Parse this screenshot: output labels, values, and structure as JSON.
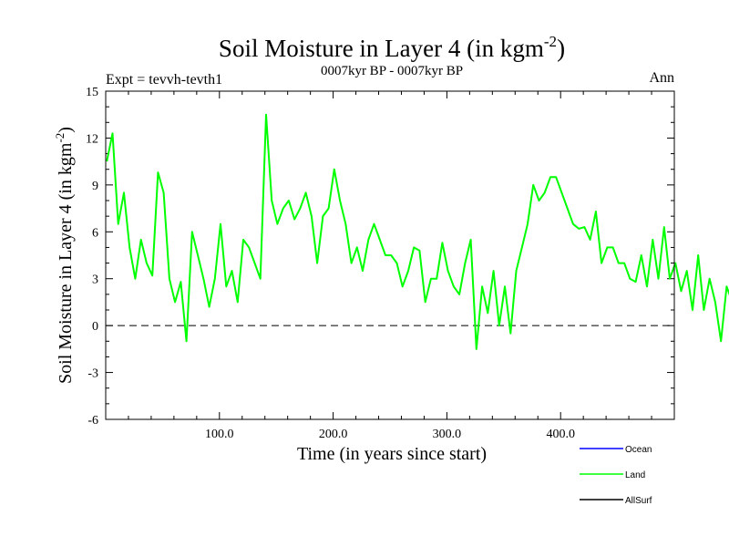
{
  "chart_data": {
    "type": "line",
    "title": "Soil Moisture in Layer 4 (in kgm",
    "title_superscript": "-2",
    "title_suffix": ")",
    "subtitle_left": "Expt = tevvh-tevth1",
    "subtitle_center": "0007kyr BP - 0007kyr BP",
    "subtitle_right": "Ann",
    "xlabel": "Time (in years since start)",
    "ylabel": "Soil Moisture in Layer 4 (in kgm",
    "ylabel_superscript": "-2",
    "ylabel_suffix": ")",
    "xlim": [
      0,
      500
    ],
    "ylim": [
      -6,
      15
    ],
    "x_ticks": [
      100,
      200,
      300,
      400
    ],
    "x_tick_labels": [
      "100.0",
      "200.0",
      "300.0",
      "400.0"
    ],
    "y_ticks": [
      -6,
      -3,
      0,
      3,
      6,
      9,
      12,
      15
    ],
    "y_tick_labels": [
      "-6",
      "-3",
      "0",
      "3",
      "6",
      "9",
      "12",
      "15"
    ],
    "zero_line": 0,
    "legend": [
      {
        "name": "Ocean",
        "color": "#0000ff"
      },
      {
        "name": "Land",
        "color": "#00ff00"
      },
      {
        "name": "AllSurf",
        "color": "#000000"
      }
    ],
    "series": [
      {
        "name": "Land",
        "color": "#00ff00",
        "x_start": 1,
        "x_step": 5,
        "values": [
          10.5,
          12.3,
          6.5,
          8.5,
          5,
          3,
          5.5,
          4,
          3.2,
          9.8,
          8.5,
          3,
          1.5,
          2.8,
          -1,
          6,
          4.5,
          3,
          1.2,
          3,
          6.5,
          2.5,
          3.5,
          1.5,
          5.5,
          5,
          4,
          3,
          13.5,
          8,
          6.5,
          7.5,
          8,
          6.8,
          7.5,
          8.5,
          7,
          4,
          7,
          7.5,
          10,
          8,
          6.5,
          4,
          5,
          3.5,
          5.5,
          6.5,
          5.5,
          4.5,
          4.5,
          4,
          2.5,
          3.5,
          5,
          4.8,
          1.5,
          3,
          3,
          5.3,
          3.5,
          2.5,
          2,
          4,
          5.5,
          -1.5,
          2.5,
          0.8,
          3.5,
          0,
          2.5,
          -0.5,
          3.5,
          5,
          6.5,
          9,
          8,
          8.5,
          9.5,
          9.5,
          8.5,
          7.5,
          6.5,
          6.2,
          6.3,
          5.5,
          7.3,
          4,
          5,
          5,
          4,
          4,
          3,
          2.8,
          4.5,
          2.5,
          5.5,
          3,
          6.3,
          3,
          4,
          2.2,
          3.5,
          1,
          4.5,
          1,
          3,
          1.5,
          -1,
          2.5,
          1.5,
          2,
          3.5,
          3,
          4.5,
          3,
          4.5,
          6.5,
          3.5,
          7.5,
          3.5,
          5,
          4,
          3.5,
          4.3,
          3,
          3.5,
          2.5,
          3.5,
          6,
          4,
          3,
          4,
          2.5,
          3.5,
          -3.2,
          1.5,
          2.5,
          3.8,
          2.8,
          4.2,
          3.3,
          2.5,
          -1.2,
          1,
          3.8,
          4,
          2.5,
          2,
          1.5,
          1.5,
          -2.5,
          3,
          5.5,
          2,
          1.5,
          3.5,
          4.8,
          2.8,
          4.5,
          5.2,
          6.5,
          4.5,
          2.3,
          5,
          5.5,
          6,
          5,
          5,
          3.5,
          4,
          3,
          5.5,
          4.2,
          3,
          3.5,
          3.5,
          0.6,
          4,
          2.5,
          4.5,
          3.5,
          3.8,
          5,
          4.2,
          4.8,
          2.8,
          4,
          4.5,
          6.5,
          3.5,
          3.8,
          6.5,
          5.2,
          5,
          3,
          5.5,
          4,
          4.8,
          1.5,
          5,
          3.5,
          7.5,
          4.5,
          6.5,
          5.5,
          4,
          5.3,
          4.5,
          6.5,
          6.3,
          4.3,
          3.5,
          2,
          3.5,
          4,
          1.5,
          2.8,
          5,
          5.5,
          6,
          3.5,
          4.5,
          5,
          2.8,
          8,
          6,
          9.2,
          5,
          7.5,
          4,
          7.5,
          1.8,
          3.8,
          3,
          6.8,
          9.5,
          5.5,
          9,
          9.5,
          4,
          4.5,
          3.3,
          3.8,
          3,
          3.8,
          2.8,
          5.5,
          4.5,
          7.5,
          5.2,
          6.5,
          1.5,
          0.5,
          1.5,
          3,
          0.5,
          2,
          2.5,
          5.5,
          3.5,
          4,
          -1.5,
          1.5,
          3,
          4.5,
          1.5,
          3.5,
          3,
          0.5,
          1.5,
          -2.5,
          2.5,
          3.5,
          4.8,
          3,
          4,
          5,
          2.2,
          3,
          3.5,
          4.5,
          3,
          3.5,
          3,
          4.5,
          6,
          3.5,
          6.5,
          3.5,
          4.5,
          7,
          4.5,
          4.8,
          4.5,
          6,
          5.5,
          4,
          2.5,
          3.5,
          4.5,
          0.5,
          3.5,
          4.5,
          6,
          3.8,
          5,
          2.5,
          5.5,
          5,
          2.5,
          7.5,
          3.5,
          3.5,
          -1.2,
          3.5,
          3.5,
          1.5,
          3.5,
          4.5,
          5,
          6,
          8.5,
          9.5,
          3.8,
          6,
          3.5,
          7.5,
          6.5,
          6.5,
          5.5,
          9,
          5,
          7,
          6.5,
          4.5,
          6,
          5.5,
          4.5,
          4,
          5.5,
          3.5,
          4,
          5.5,
          4,
          5.5,
          1.5,
          4,
          3.8,
          3.5,
          3,
          5.8,
          4,
          6.5,
          4.5,
          6.2,
          6,
          6,
          5.5,
          10,
          4.5,
          6.5,
          5.5,
          7.5,
          7,
          8,
          5.5,
          6.5,
          2.5,
          7,
          3.8,
          4.2,
          5,
          3,
          5.5,
          3.5,
          6.5,
          4.5,
          3.5,
          7.5,
          4,
          3,
          3,
          2.5,
          4,
          3,
          5.5,
          4.5,
          5.5,
          4.5,
          5,
          3,
          6.5,
          4,
          6.5,
          4.5,
          2,
          3,
          5.5,
          5,
          3.5,
          4,
          5.5,
          6.5,
          4,
          2.5,
          -1.5,
          1.5,
          2.5,
          3,
          4,
          2.5,
          3.5,
          5,
          6,
          4.5,
          4,
          3,
          2.2,
          3.5,
          1.5,
          3.5,
          -1.5,
          0.5,
          1,
          2.5,
          4.5,
          2.5,
          2,
          3,
          0,
          -0.5,
          1.5,
          1.5,
          -1.5,
          1.3,
          2.5,
          1,
          -2,
          0.8,
          3,
          0.5,
          -3.5,
          2,
          -3.5,
          3,
          5,
          -0.5,
          4,
          6,
          8
        ]
      }
    ]
  }
}
